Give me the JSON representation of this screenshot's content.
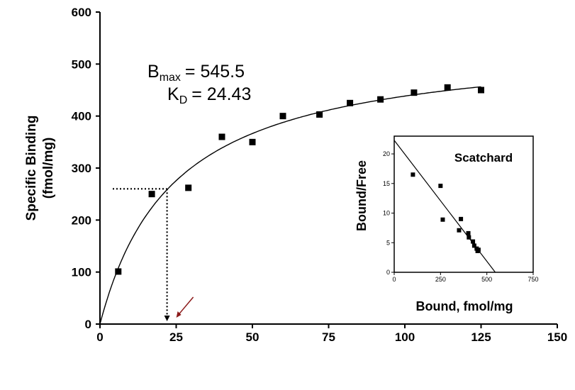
{
  "chart_data": [
    {
      "type": "scatter",
      "title": "",
      "xlabel": "",
      "ylabel_lines": [
        "Specific Binding",
        "(fmol/mg)"
      ],
      "xlim": [
        0,
        150
      ],
      "ylim": [
        0,
        600
      ],
      "xticks": [
        0,
        25,
        50,
        75,
        100,
        125,
        150
      ],
      "yticks": [
        0,
        100,
        200,
        300,
        400,
        500,
        600
      ],
      "series": [
        {
          "x": [
            6,
            17,
            29,
            40,
            50,
            60,
            72,
            82,
            92,
            103,
            114,
            125
          ],
          "y": [
            101,
            250,
            262,
            360,
            350,
            400,
            403,
            425,
            432,
            445,
            455,
            450
          ]
        }
      ],
      "fit": {
        "model": "one-site binding",
        "bmax": 545.5,
        "kd": 24.43
      },
      "annotations": {
        "bmax": {
          "main": "B",
          "sub": "max",
          "value": "= 545.5"
        },
        "kd": {
          "main": "K",
          "sub": "D",
          "value": "= 24.43"
        }
      },
      "guide": {
        "x": 22,
        "y": 260
      },
      "grid": false,
      "legend": "none",
      "colors": {
        "points": "#000000",
        "fit": "#000000",
        "arrow": "#8b1a1a"
      }
    },
    {
      "type": "scatter",
      "title": "Scatchard",
      "xlabel": "Bound, fmol/mg",
      "ylabel": "Bound/Free",
      "xlim": [
        0,
        750
      ],
      "ylim": [
        0,
        23
      ],
      "xticks": [
        0,
        250,
        500,
        750
      ],
      "yticks": [
        0,
        5,
        10,
        15,
        20
      ],
      "series": [
        {
          "x": [
            101,
            250,
            262,
            350,
            360,
            400,
            403,
            425,
            432,
            445,
            450,
            455
          ],
          "y": [
            16.5,
            14.6,
            8.9,
            7.1,
            9.0,
            6.6,
            5.9,
            5.2,
            4.5,
            4.0,
            3.6,
            3.8
          ]
        }
      ],
      "fit_line": {
        "x": [
          0,
          545.5
        ],
        "y": [
          22.3,
          0
        ]
      },
      "grid": false,
      "legend": "none"
    }
  ]
}
